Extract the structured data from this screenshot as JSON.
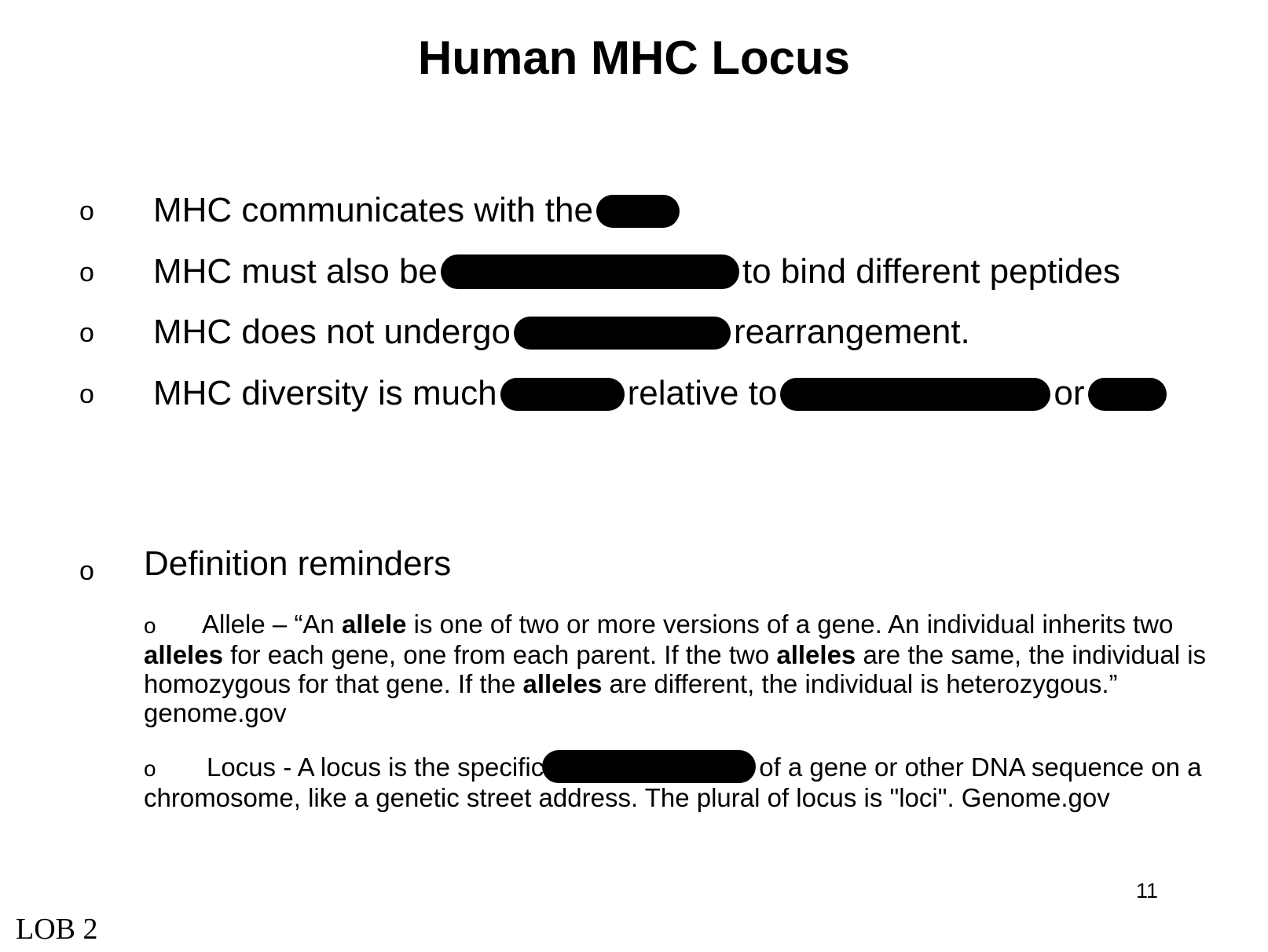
{
  "title": "Human MHC Locus",
  "bullets": [
    {
      "marker": "o",
      "parts": [
        "MHC communicates with the"
      ]
    },
    {
      "marker": "o",
      "parts": [
        "MHC must also be",
        "to bind different peptides"
      ]
    },
    {
      "marker": "o",
      "parts": [
        "MHC does not undergo",
        "rearrangement."
      ]
    },
    {
      "marker": "o",
      "parts": [
        "MHC diversity is much",
        "relative to",
        "or"
      ]
    }
  ],
  "definitions": {
    "heading_marker": "o",
    "heading": "Definition reminders",
    "items": [
      {
        "marker": "o",
        "text_parts": [
          "Allele – “An ",
          "allele",
          " is one of two or more versions of a gene. An individual inherits two ",
          "alleles",
          " for each gene, one from each parent. If the two ",
          "alleles",
          " are the same, the individual is homozygous for that gene. If the ",
          "alleles",
          " are different, the individual is heterozygous.” genome.gov"
        ]
      },
      {
        "marker": "o",
        "text_parts": [
          "Locus - A locus is the specific",
          "of a gene or other DNA sequence on a chromosome, like a genetic street address. The plural of locus is \"loci\". Genome.gov"
        ]
      }
    ]
  },
  "page_number": "11",
  "footer_label": "LOB 2"
}
